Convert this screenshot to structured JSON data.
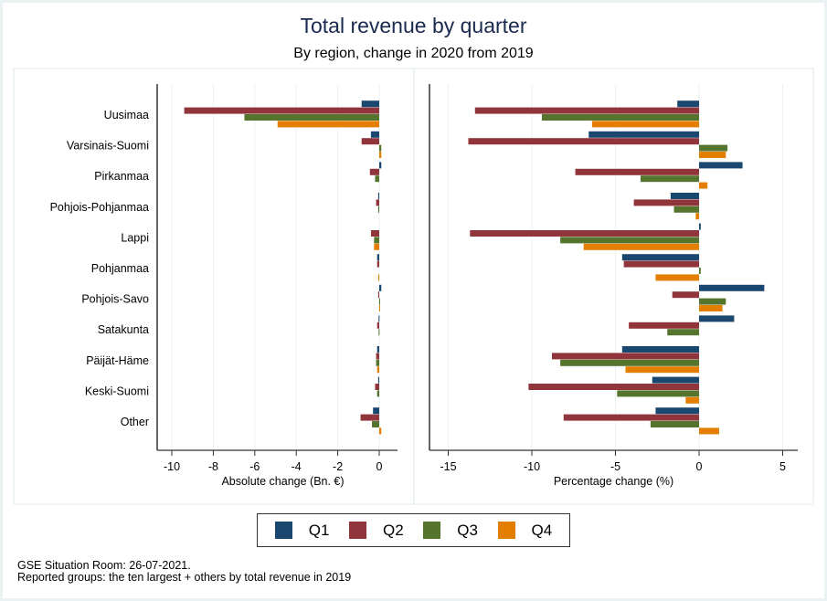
{
  "title": "Total revenue by quarter",
  "subtitle": "By region, change in 2020 from 2019",
  "notes": [
    "GSE Situation Room: 26-07-2021.",
    "Reported groups: the ten largest + others by total revenue in 2019"
  ],
  "colors": {
    "Q1": "#1a476f",
    "Q2": "#90353b",
    "Q3": "#55752f",
    "Q4": "#e37e00"
  },
  "legend": [
    {
      "label": "Q1",
      "key": "Q1"
    },
    {
      "label": "Q2",
      "key": "Q2"
    },
    {
      "label": "Q3",
      "key": "Q3"
    },
    {
      "label": "Q4",
      "key": "Q4"
    }
  ],
  "chart_data": [
    {
      "type": "bar",
      "orientation": "horizontal",
      "title": "",
      "xlabel": "Absolute change (Bn. €)",
      "ylabel": "",
      "xlim": [
        -10.6,
        0.9
      ],
      "xticks": [
        -10,
        -8,
        -6,
        -4,
        -2,
        0
      ],
      "xtick_labels": [
        "-10",
        "-8",
        "-6",
        "-4",
        "-2",
        "0"
      ],
      "grid": true,
      "categories": [
        "Uusimaa",
        "Varsinais-Suomi",
        "Pirkanmaa",
        "Pohjois-Pohjanmaa",
        "Lappi",
        "Pohjanmaa",
        "Pohjois-Savo",
        "Satakunta",
        "Päijät-Häme",
        "Keski-Suomi",
        "Other"
      ],
      "series": [
        {
          "name": "Q1",
          "values": [
            -0.85,
            -0.4,
            0.1,
            -0.05,
            0.0,
            -0.1,
            0.1,
            -0.03,
            -0.1,
            -0.05,
            -0.3
          ]
        },
        {
          "name": "Q2",
          "values": [
            -9.4,
            -0.85,
            -0.45,
            -0.15,
            -0.4,
            -0.1,
            -0.05,
            -0.1,
            -0.15,
            -0.2,
            -0.9
          ]
        },
        {
          "name": "Q3",
          "values": [
            -6.5,
            0.1,
            -0.2,
            -0.05,
            -0.25,
            0.0,
            0.02,
            -0.03,
            -0.15,
            -0.1,
            -0.35
          ]
        },
        {
          "name": "Q4",
          "values": [
            -4.9,
            0.1,
            0.0,
            0.0,
            -0.25,
            -0.05,
            0.02,
            0.0,
            -0.1,
            0.0,
            0.1
          ]
        }
      ],
      "legend": "bottom"
    },
    {
      "type": "bar",
      "orientation": "horizontal",
      "title": "",
      "xlabel": "Percentage change (%)",
      "ylabel": "",
      "xlim": [
        -16.1,
        5.9
      ],
      "xticks": [
        -15,
        -10,
        -5,
        0,
        5
      ],
      "xtick_labels": [
        "-15",
        "-10",
        "-5",
        "0",
        "5"
      ],
      "grid": true,
      "categories": [
        "Uusimaa",
        "Varsinais-Suomi",
        "Pirkanmaa",
        "Pohjois-Pohjanmaa",
        "Lappi",
        "Pohjanmaa",
        "Pohjois-Savo",
        "Satakunta",
        "Päijät-Häme",
        "Keski-Suomi",
        "Other"
      ],
      "series": [
        {
          "name": "Q1",
          "values": [
            -1.3,
            -6.6,
            2.6,
            -1.7,
            0.1,
            -4.6,
            3.9,
            2.1,
            -4.6,
            -2.8,
            -2.6
          ]
        },
        {
          "name": "Q2",
          "values": [
            -13.4,
            -13.8,
            -7.4,
            -3.9,
            -13.7,
            -4.5,
            -1.6,
            -4.2,
            -8.8,
            -10.2,
            -8.1
          ]
        },
        {
          "name": "Q3",
          "values": [
            -9.4,
            1.7,
            -3.5,
            -1.5,
            -8.3,
            0.1,
            1.6,
            -1.9,
            -8.3,
            -4.9,
            -2.9
          ]
        },
        {
          "name": "Q4",
          "values": [
            -6.4,
            1.6,
            0.5,
            -0.2,
            -6.9,
            -2.6,
            1.4,
            0.0,
            -4.4,
            -0.8,
            1.2
          ]
        }
      ],
      "legend": "bottom"
    }
  ]
}
